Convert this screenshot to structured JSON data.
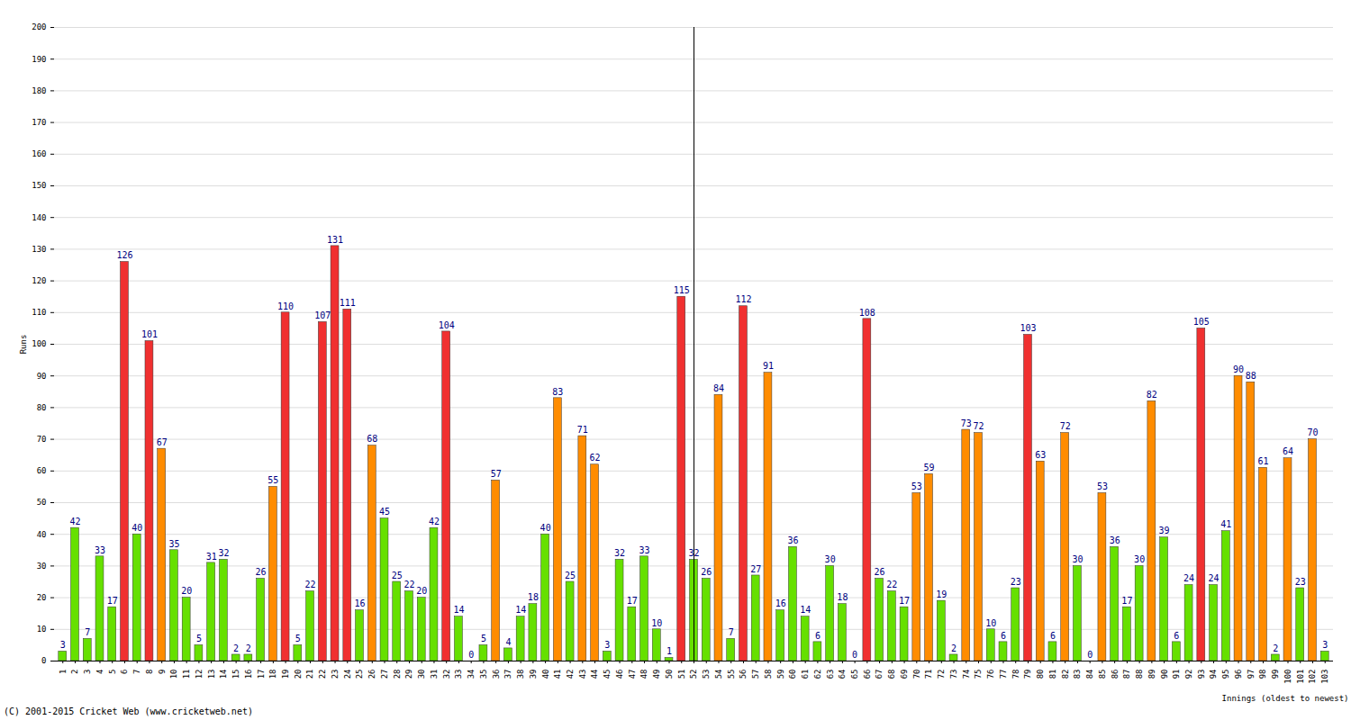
{
  "chart_data": {
    "type": "bar",
    "y_label": "Runs",
    "x_label": "Innings (oldest to newest)",
    "caption": "(C) 2001-2015 Cricket Web (www.cricketweb.net)",
    "categories": [
      "1",
      "2",
      "3",
      "4",
      "5",
      "6",
      "7",
      "8",
      "9",
      "10",
      "11",
      "12",
      "13",
      "14",
      "15",
      "16",
      "17",
      "18",
      "19",
      "20",
      "21",
      "22",
      "23",
      "24",
      "25",
      "26",
      "27",
      "28",
      "29",
      "30",
      "31",
      "32",
      "33",
      "34",
      "35",
      "36",
      "37",
      "38",
      "39",
      "40",
      "41",
      "42",
      "43",
      "44",
      "45",
      "46",
      "47",
      "48",
      "49",
      "50",
      "51",
      "52",
      "53",
      "54",
      "55",
      "56",
      "57",
      "58",
      "59",
      "60",
      "61",
      "62",
      "63",
      "64",
      "65",
      "66",
      "67",
      "68",
      "69",
      "70",
      "71",
      "72",
      "73",
      "74",
      "75",
      "76",
      "77",
      "78",
      "79",
      "80",
      "81",
      "82",
      "83",
      "84",
      "85",
      "86",
      "87",
      "88",
      "89",
      "90",
      "91",
      "92",
      "93",
      "94",
      "95",
      "96",
      "97",
      "98",
      "99",
      "100",
      "101",
      "102",
      "103"
    ],
    "values": [
      3,
      42,
      7,
      33,
      17,
      126,
      40,
      101,
      67,
      35,
      20,
      5,
      31,
      32,
      2,
      2,
      26,
      55,
      110,
      5,
      22,
      107,
      131,
      111,
      16,
      68,
      45,
      25,
      22,
      20,
      42,
      104,
      14,
      0,
      5,
      57,
      4,
      14,
      18,
      40,
      83,
      25,
      71,
      62,
      3,
      32,
      17,
      33,
      10,
      1,
      115,
      32,
      26,
      84,
      7,
      112,
      27,
      91,
      16,
      36,
      14,
      6,
      30,
      18,
      0,
      108,
      26,
      22,
      17,
      53,
      59,
      19,
      2,
      73,
      72,
      10,
      6,
      23,
      103,
      63,
      6,
      72,
      30,
      0,
      53,
      36,
      17,
      30,
      82,
      39,
      6,
      24,
      105,
      24,
      41,
      90,
      88,
      61,
      2,
      64,
      23,
      70,
      3
    ],
    "colors": [
      "#66e000",
      "#66e000",
      "#66e000",
      "#66e000",
      "#66e000",
      "#f03030",
      "#66e000",
      "#f03030",
      "#ff8c00",
      "#66e000",
      "#66e000",
      "#66e000",
      "#66e000",
      "#66e000",
      "#66e000",
      "#66e000",
      "#66e000",
      "#ff8c00",
      "#f03030",
      "#66e000",
      "#66e000",
      "#f03030",
      "#f03030",
      "#f03030",
      "#66e000",
      "#ff8c00",
      "#66e000",
      "#66e000",
      "#66e000",
      "#66e000",
      "#66e000",
      "#f03030",
      "#66e000",
      "#66e000",
      "#66e000",
      "#ff8c00",
      "#66e000",
      "#66e000",
      "#66e000",
      "#66e000",
      "#ff8c00",
      "#66e000",
      "#ff8c00",
      "#ff8c00",
      "#66e000",
      "#66e000",
      "#66e000",
      "#66e000",
      "#66e000",
      "#66e000",
      "#f03030",
      "#66e000",
      "#66e000",
      "#ff8c00",
      "#66e000",
      "#f03030",
      "#66e000",
      "#ff8c00",
      "#66e000",
      "#66e000",
      "#66e000",
      "#66e000",
      "#66e000",
      "#66e000",
      "#66e000",
      "#f03030",
      "#66e000",
      "#66e000",
      "#66e000",
      "#ff8c00",
      "#ff8c00",
      "#66e000",
      "#66e000",
      "#ff8c00",
      "#ff8c00",
      "#66e000",
      "#66e000",
      "#66e000",
      "#f03030",
      "#ff8c00",
      "#66e000",
      "#ff8c00",
      "#66e000",
      "#66e000",
      "#ff8c00",
      "#66e000",
      "#66e000",
      "#66e000",
      "#ff8c00",
      "#66e000",
      "#66e000",
      "#66e000",
      "#f03030",
      "#66e000",
      "#66e000",
      "#ff8c00",
      "#ff8c00",
      "#ff8c00",
      "#66e000",
      "#ff8c00",
      "#66e000",
      "#ff8c00",
      "#66e000"
    ],
    "ylim": [
      0,
      200
    ],
    "yticks": [
      0,
      10,
      20,
      30,
      40,
      50,
      60,
      70,
      80,
      90,
      100,
      110,
      120,
      130,
      140,
      150,
      160,
      170,
      180,
      190,
      200
    ],
    "grid": true,
    "data_labels": true
  }
}
